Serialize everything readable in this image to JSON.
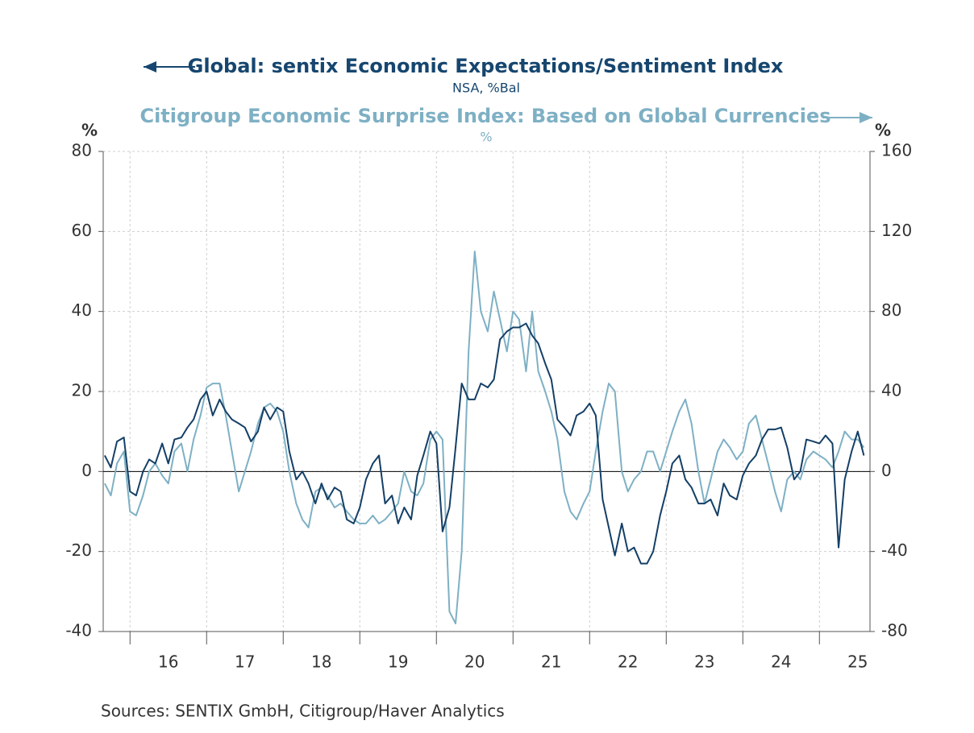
{
  "chart_data": {
    "type": "line",
    "title": "Global: sentix Economic Expectations/Sentiment Index",
    "subtitle": "NSA, %Bal",
    "title2": "Citigroup Economic Surprise Index: Based on Global Currencies",
    "subtitle2": "%",
    "y_label": "%",
    "y2_label": "%",
    "source": "Sources:  SENTIX GmbH, Citigroup/Haver Analytics",
    "grid": true,
    "xlim": [
      2015.65,
      2025.66
    ],
    "xticks": [
      {
        "value": 2016,
        "label": "16"
      },
      {
        "value": 2017,
        "label": "17"
      },
      {
        "value": 2018,
        "label": "18"
      },
      {
        "value": 2019,
        "label": "19"
      },
      {
        "value": 2020,
        "label": "20"
      },
      {
        "value": 2021,
        "label": "21"
      },
      {
        "value": 2022,
        "label": "22"
      },
      {
        "value": 2023,
        "label": "23"
      },
      {
        "value": 2024,
        "label": "24"
      },
      {
        "value": 2025,
        "label": "25"
      }
    ],
    "ylim": [
      -40,
      80
    ],
    "yticks": [
      -40,
      -20,
      0,
      20,
      40,
      60,
      80
    ],
    "y2lim": [
      -80,
      160
    ],
    "y2ticks": [
      -80,
      -40,
      0,
      40,
      80,
      120,
      160
    ],
    "x": [
      2015.67,
      2015.75,
      2015.83,
      2015.92,
      2016,
      2016.08,
      2016.17,
      2016.25,
      2016.33,
      2016.42,
      2016.5,
      2016.58,
      2016.67,
      2016.75,
      2016.83,
      2016.92,
      2017,
      2017.08,
      2017.17,
      2017.25,
      2017.33,
      2017.42,
      2017.5,
      2017.58,
      2017.67,
      2017.75,
      2017.83,
      2017.92,
      2018,
      2018.08,
      2018.17,
      2018.25,
      2018.33,
      2018.42,
      2018.5,
      2018.58,
      2018.67,
      2018.75,
      2018.83,
      2018.92,
      2019,
      2019.08,
      2019.17,
      2019.25,
      2019.33,
      2019.42,
      2019.5,
      2019.58,
      2019.67,
      2019.75,
      2019.83,
      2019.92,
      2020,
      2020.08,
      2020.17,
      2020.25,
      2020.33,
      2020.42,
      2020.5,
      2020.58,
      2020.67,
      2020.75,
      2020.83,
      2020.92,
      2021,
      2021.08,
      2021.17,
      2021.25,
      2021.33,
      2021.42,
      2021.5,
      2021.58,
      2021.67,
      2021.75,
      2021.83,
      2021.92,
      2022,
      2022.08,
      2022.17,
      2022.25,
      2022.33,
      2022.42,
      2022.5,
      2022.58,
      2022.67,
      2022.75,
      2022.83,
      2022.92,
      2023,
      2023.08,
      2023.17,
      2023.25,
      2023.33,
      2023.42,
      2023.5,
      2023.58,
      2023.67,
      2023.75,
      2023.83,
      2023.92,
      2024,
      2024.08,
      2024.17,
      2024.25,
      2024.33,
      2024.42,
      2024.5,
      2024.58,
      2024.67,
      2024.75,
      2024.83,
      2024.92,
      2025,
      2025.08,
      2025.17,
      2025.25,
      2025.33,
      2025.42,
      2025.5,
      2025.58
    ],
    "series": [
      {
        "name": "Citigroup Economic Surprise Index",
        "color": "#7eb0c4",
        "axis": "y2",
        "values": [
          -6,
          -12,
          4,
          10,
          -20,
          -22,
          -12,
          0,
          4,
          -2,
          -6,
          10,
          14,
          0,
          16,
          28,
          42,
          44,
          44,
          28,
          10,
          -10,
          0,
          10,
          24,
          32,
          34,
          30,
          20,
          0,
          -16,
          -24,
          -28,
          -10,
          -8,
          -12,
          -18,
          -16,
          -20,
          -24,
          -26,
          -26,
          -22,
          -26,
          -24,
          -20,
          -16,
          0,
          -10,
          -12,
          -6,
          16,
          20,
          16,
          -70,
          -76,
          -40,
          60,
          110,
          80,
          70,
          90,
          76,
          60,
          80,
          76,
          50,
          80,
          50,
          40,
          30,
          16,
          -10,
          -20,
          -24,
          -16,
          -10,
          10,
          30,
          44,
          40,
          0,
          -10,
          -4,
          0,
          10,
          10,
          0,
          10,
          20,
          30,
          36,
          24,
          0,
          -16,
          -4,
          10,
          16,
          12,
          6,
          10,
          24,
          28,
          16,
          4,
          -10,
          -20,
          -4,
          0,
          -4,
          6,
          10,
          8,
          6,
          2,
          10,
          20,
          16,
          16,
          12
        ]
      },
      {
        "name": "Global: sentix Economic Expectations/Sentiment Index",
        "color": "#143f66",
        "values": [
          4,
          1,
          7.5,
          8.5,
          -5,
          -6,
          0,
          3,
          2,
          7,
          2,
          8,
          8.5,
          11,
          13,
          18,
          20,
          14,
          18,
          15,
          13,
          12,
          11,
          7.5,
          10,
          16,
          13,
          16,
          15,
          5,
          -2,
          0,
          -3,
          -8,
          -3,
          -7,
          -4,
          -5,
          -12,
          -13,
          -9,
          -2,
          2,
          4,
          -8,
          -6,
          -13,
          -9,
          -12,
          -1,
          4,
          10,
          7,
          -15,
          -9,
          6,
          22,
          18,
          18,
          22,
          21,
          23,
          33,
          35,
          36,
          36,
          37,
          34,
          32,
          27,
          23,
          13,
          11,
          9,
          14,
          15,
          17,
          14,
          -7,
          -14,
          -21,
          -13,
          -20,
          -19,
          -23,
          -23,
          -20,
          -11,
          -5,
          2,
          4,
          -2,
          -4,
          -8,
          -8,
          -7,
          -11,
          -3,
          -6,
          -7,
          -1,
          2,
          4,
          8,
          10.5,
          10.5,
          11,
          6,
          -2,
          0,
          8,
          7.5,
          7,
          9,
          7,
          -19,
          -2,
          5,
          10,
          4
        ]
      }
    ]
  }
}
